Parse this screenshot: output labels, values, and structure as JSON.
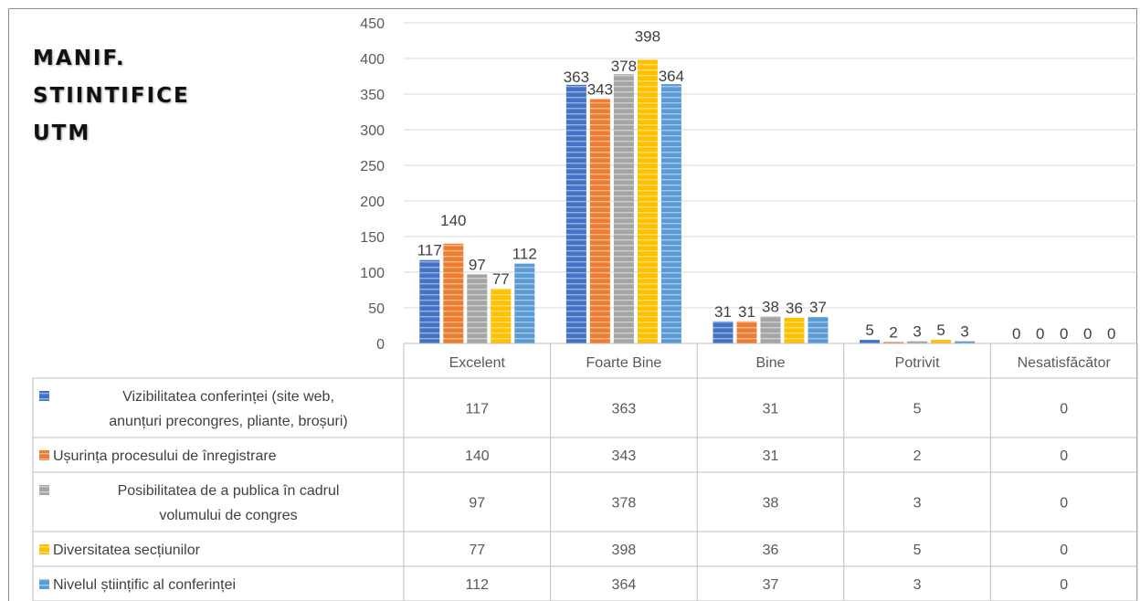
{
  "title_lines": [
    "MANIF.",
    "STIINTIFICE",
    "UTM"
  ],
  "chart_data": {
    "type": "bar",
    "categories": [
      "Excelent",
      "Foarte Bine",
      "Bine",
      "Potrivit",
      "Nesatisfăcător"
    ],
    "series": [
      {
        "name_lines": [
          "Vizibilitatea conferinței (site web,",
          "anunțuri precongres, pliante, broșuri)"
        ],
        "color": "#4472C4",
        "values": [
          117,
          363,
          31,
          5,
          0
        ]
      },
      {
        "name_lines": [
          "Ușurința procesului de înregistrare"
        ],
        "color": "#ED7D31",
        "values": [
          140,
          343,
          31,
          2,
          0
        ]
      },
      {
        "name_lines": [
          "Posibilitatea de a publica în cadrul",
          "volumului de congres"
        ],
        "color": "#A5A5A5",
        "values": [
          97,
          378,
          38,
          3,
          0
        ]
      },
      {
        "name_lines": [
          "Diversitatea secțiunilor"
        ],
        "color": "#FFC000",
        "values": [
          77,
          398,
          36,
          5,
          0
        ]
      },
      {
        "name_lines": [
          "Nivelul științific al conferinței"
        ],
        "color": "#5B9BD5",
        "values": [
          112,
          364,
          37,
          3,
          0
        ]
      }
    ],
    "ylim": [
      0,
      450
    ],
    "yticks": [
      0,
      50,
      100,
      150,
      200,
      250,
      300,
      350,
      400,
      450
    ],
    "grid": true,
    "legend": "data-table"
  }
}
